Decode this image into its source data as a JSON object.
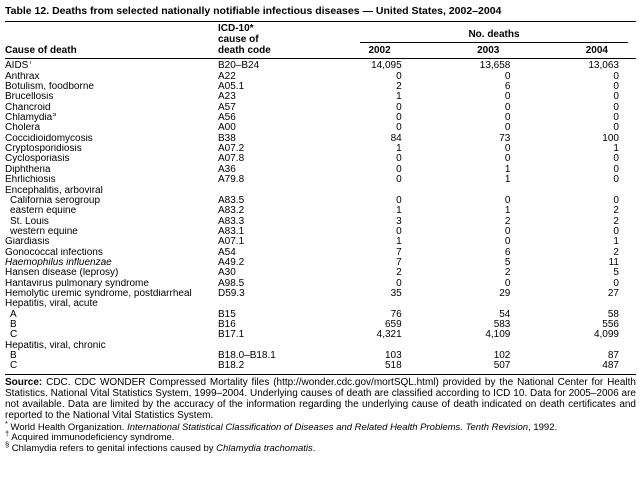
{
  "title": "Table 12. Deaths from selected nationally notifiable infectious diseases — United States, 2002–2004",
  "table": {
    "col_headers": {
      "cause": "Cause of death",
      "icd_line1": "ICD-10*",
      "icd_line2": "cause of",
      "icd_line3": "death code",
      "deaths_group": "No. deaths",
      "years": [
        "2002",
        "2003",
        "2004"
      ]
    },
    "rows": [
      {
        "type": "r",
        "label": "AIDS",
        "sup": "†",
        "italic": false,
        "code": "B20–B24",
        "v": [
          "14,095",
          "13,658",
          "13,063"
        ]
      },
      {
        "type": "r",
        "label": "Anthrax",
        "sup": "",
        "italic": false,
        "code": "A22",
        "v": [
          "0",
          "0",
          "0"
        ]
      },
      {
        "type": "r",
        "label": "Botulism, foodborne",
        "sup": "",
        "italic": false,
        "code": "A05.1",
        "v": [
          "2",
          "6",
          "0"
        ]
      },
      {
        "type": "r",
        "label": "Brucellosis",
        "sup": "",
        "italic": false,
        "code": "A23",
        "v": [
          "1",
          "0",
          "0"
        ]
      },
      {
        "type": "r",
        "label": "Chancroid",
        "sup": "",
        "italic": false,
        "code": "A57",
        "v": [
          "0",
          "0",
          "0"
        ]
      },
      {
        "type": "r",
        "label": "Chlamydia",
        "sup": "§",
        "italic": false,
        "code": "A56",
        "v": [
          "0",
          "0",
          "0"
        ]
      },
      {
        "type": "r",
        "label": "Cholera",
        "sup": "",
        "italic": false,
        "code": "A00",
        "v": [
          "0",
          "0",
          "0"
        ]
      },
      {
        "type": "r",
        "label": "Coccidioidomycosis",
        "sup": "",
        "italic": false,
        "code": "B38",
        "v": [
          "84",
          "73",
          "100"
        ]
      },
      {
        "type": "r",
        "label": "Cryptosporidiosis",
        "sup": "",
        "italic": false,
        "code": "A07.2",
        "v": [
          "1",
          "0",
          "1"
        ]
      },
      {
        "type": "r",
        "label": "Cyclosporiasis",
        "sup": "",
        "italic": false,
        "code": "A07.8",
        "v": [
          "0",
          "0",
          "0"
        ]
      },
      {
        "type": "r",
        "label": "Diphtheria",
        "sup": "",
        "italic": false,
        "code": "A36",
        "v": [
          "0",
          "1",
          "0"
        ]
      },
      {
        "type": "r",
        "label": "Ehrlichiosis",
        "sup": "",
        "italic": false,
        "code": "A79.8",
        "v": [
          "0",
          "1",
          "0"
        ]
      },
      {
        "type": "s",
        "label": "Encephalitis, arboviral",
        "sup": "",
        "italic": false,
        "code": "",
        "v": [
          "",
          "",
          ""
        ]
      },
      {
        "type": "i",
        "label": "California serogroup",
        "sup": "",
        "italic": false,
        "code": "A83.5",
        "v": [
          "0",
          "0",
          "0"
        ]
      },
      {
        "type": "i",
        "label": "eastern equine",
        "sup": "",
        "italic": false,
        "code": "A83.2",
        "v": [
          "1",
          "1",
          "2"
        ]
      },
      {
        "type": "i",
        "label": "St. Louis",
        "sup": "",
        "italic": false,
        "code": "A83.3",
        "v": [
          "3",
          "2",
          "2"
        ]
      },
      {
        "type": "i",
        "label": "western equine",
        "sup": "",
        "italic": false,
        "code": "A83.1",
        "v": [
          "0",
          "0",
          "0"
        ]
      },
      {
        "type": "r",
        "label": "Giardiasis",
        "sup": "",
        "italic": false,
        "code": "A07.1",
        "v": [
          "1",
          "0",
          "1"
        ]
      },
      {
        "type": "r",
        "label": "Gonococcal infections",
        "sup": "",
        "italic": false,
        "code": "A54",
        "v": [
          "7",
          "6",
          "2"
        ]
      },
      {
        "type": "r",
        "label": "Haemophilus influenzae",
        "sup": "",
        "italic": true,
        "code": "A49.2",
        "v": [
          "7",
          "5",
          "11"
        ]
      },
      {
        "type": "r",
        "label": "Hansen disease (leprosy)",
        "sup": "",
        "italic": false,
        "code": "A30",
        "v": [
          "2",
          "2",
          "5"
        ]
      },
      {
        "type": "r",
        "label": "Hantavirus pulmonary syndrome",
        "sup": "",
        "italic": false,
        "code": "A98.5",
        "v": [
          "0",
          "0",
          "0"
        ]
      },
      {
        "type": "r",
        "label": "Hemolytic uremic syndrome, postdiarrheal",
        "sup": "",
        "italic": false,
        "code": "D59.3",
        "v": [
          "35",
          "29",
          "27"
        ]
      },
      {
        "type": "s",
        "label": "Hepatitis, viral, acute",
        "sup": "",
        "italic": false,
        "code": "",
        "v": [
          "",
          "",
          ""
        ]
      },
      {
        "type": "i",
        "label": "A",
        "sup": "",
        "italic": false,
        "code": "B15",
        "v": [
          "76",
          "54",
          "58"
        ]
      },
      {
        "type": "i",
        "label": "B",
        "sup": "",
        "italic": false,
        "code": "B16",
        "v": [
          "659",
          "583",
          "556"
        ]
      },
      {
        "type": "i",
        "label": "C",
        "sup": "",
        "italic": false,
        "code": "B17.1",
        "v": [
          "4,321",
          "4,109",
          "4,099"
        ]
      },
      {
        "type": "s",
        "label": "Hepatitis, viral, chronic",
        "sup": "",
        "italic": false,
        "code": "",
        "v": [
          "",
          "",
          ""
        ]
      },
      {
        "type": "i",
        "label": "B",
        "sup": "",
        "italic": false,
        "code": "B18.0–B18.1",
        "v": [
          "103",
          "102",
          "87"
        ]
      },
      {
        "type": "i",
        "label": "C",
        "sup": "",
        "italic": false,
        "code": "B18.2",
        "v": [
          "518",
          "507",
          "487"
        ]
      }
    ]
  },
  "source": {
    "label": "Source:",
    "text": " CDC. CDC WONDER Compressed Mortality files (http://wonder.cdc.gov/mortSQL.html) provided by the National Center for Health Statistics. National Vital Statistics System, 1999–2004. Underlying causes of death are classified according to ICD 10. Data for 2005–2006 are not available. Data are limited by the accuracy of the information regarding the underlying cause of death indicated on death certificates and reported to the National Vital Statistics System."
  },
  "footnotes": [
    {
      "sup": "*",
      "pre": "World Health Organization. ",
      "it": "International Statistical Classification of Diseases and Related Health Problems. Tenth Revision",
      "post": ", 1992."
    },
    {
      "sup": "†",
      "pre": "Acquired immunodeficiency syndrome.",
      "it": "",
      "post": ""
    },
    {
      "sup": "§",
      "pre": "Chlamydia refers to genital infections caused by ",
      "it": "Chlamydia trachomatis",
      "post": "."
    }
  ]
}
